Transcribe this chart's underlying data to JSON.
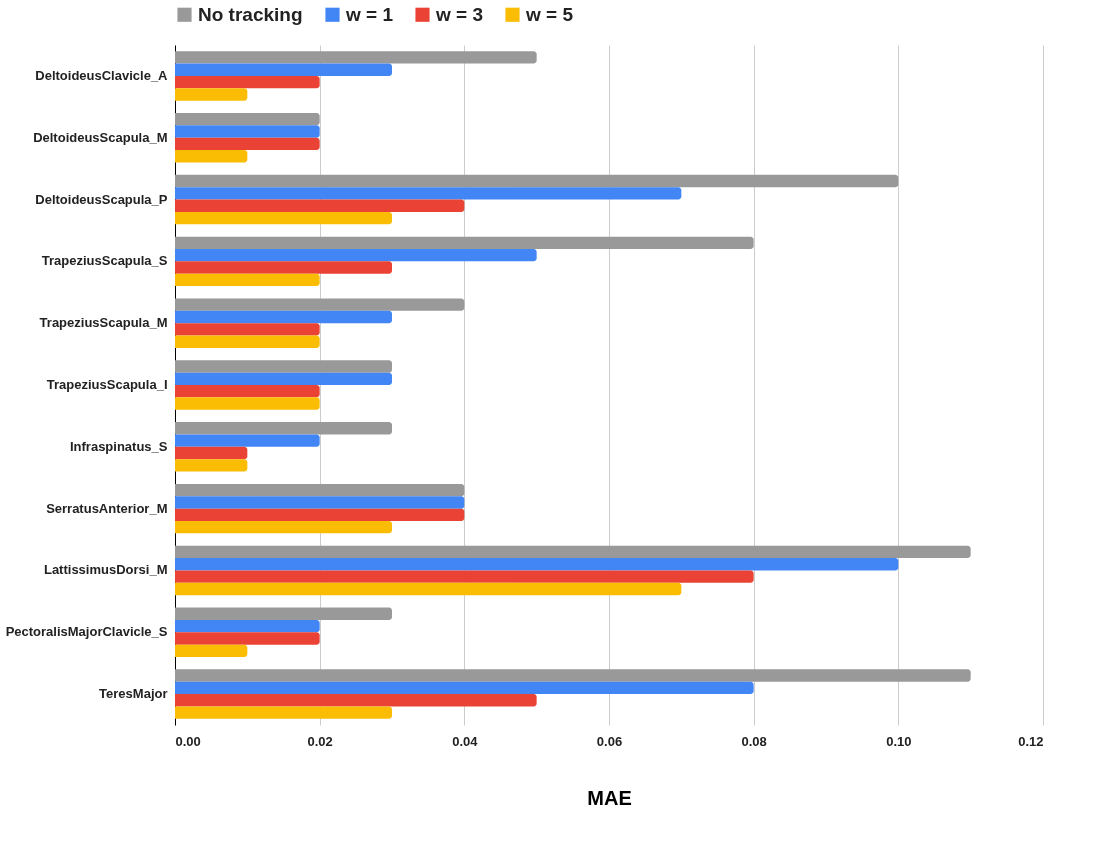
{
  "chart_data": {
    "type": "bar",
    "orientation": "horizontal",
    "xlabel": "MAE",
    "categories": [
      "DeltoideusClavicle_A",
      "DeltoideusScapula_M",
      "DeltoideusScapula_P",
      "TrapeziusScapula_S",
      "TrapeziusScapula_M",
      "TrapeziusScapula_I",
      "Infraspinatus_S",
      "SerratusAnterior_M",
      "LattissimusDorsi_M",
      "PectoralisMajorClavicle_S",
      "TeresMajor"
    ],
    "series": [
      {
        "name": "No tracking",
        "color": "#999999",
        "values": [
          0.05,
          0.02,
          0.1,
          0.08,
          0.04,
          0.03,
          0.03,
          0.04,
          0.11,
          0.03,
          0.11
        ]
      },
      {
        "name": "w = 1",
        "color": "#4285f4",
        "values": [
          0.03,
          0.02,
          0.07,
          0.05,
          0.03,
          0.03,
          0.02,
          0.04,
          0.1,
          0.02,
          0.08
        ]
      },
      {
        "name": "w = 3",
        "color": "#ea4335",
        "values": [
          0.02,
          0.02,
          0.04,
          0.03,
          0.02,
          0.02,
          0.01,
          0.04,
          0.08,
          0.02,
          0.05
        ]
      },
      {
        "name": "w = 5",
        "color": "#fbbc04",
        "values": [
          0.01,
          0.01,
          0.03,
          0.02,
          0.02,
          0.02,
          0.01,
          0.03,
          0.07,
          0.01,
          0.03
        ]
      }
    ],
    "xlim": [
      0,
      0.12
    ],
    "xticks": [
      {
        "value": 0,
        "label": "0.00"
      },
      0.02,
      0.04,
      0.06,
      0.08,
      {
        "value": 0.1,
        "label": "0.10"
      },
      {
        "value": 0.12,
        "label": "0.12"
      }
    ],
    "grid": "x",
    "legend": "top"
  }
}
